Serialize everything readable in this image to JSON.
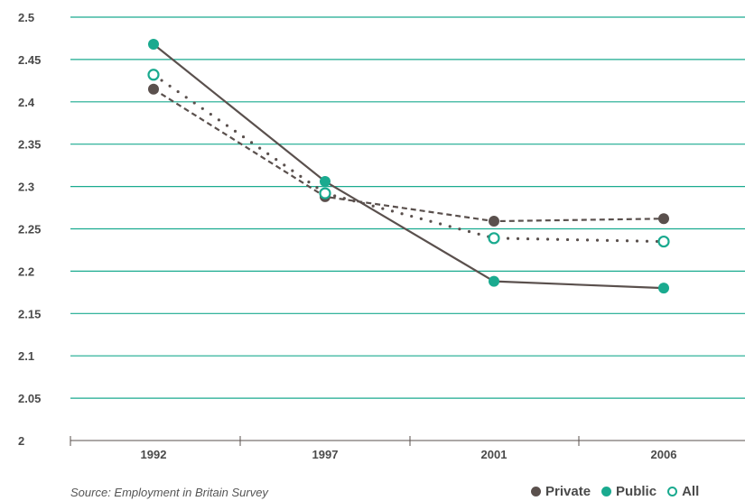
{
  "chart_data": {
    "type": "line",
    "categories": [
      "1992",
      "1997",
      "2001",
      "2006"
    ],
    "ylim": [
      2,
      2.5
    ],
    "yticks": [
      "2.5",
      "2.45",
      "2.4",
      "2.35",
      "2.3",
      "2.25",
      "2.2",
      "2.15",
      "2.1",
      "2.05",
      "2"
    ],
    "grid": true,
    "legend_position": "bottom-right",
    "series": [
      {
        "name": "Private",
        "values": [
          2.415,
          2.288,
          2.259,
          2.262
        ],
        "color": "#5a504d",
        "line": "dashed",
        "marker": "filled"
      },
      {
        "name": "Public",
        "values": [
          2.468,
          2.306,
          2.188,
          2.18
        ],
        "color": "#1aaa8f",
        "line": "solid",
        "marker": "filled"
      },
      {
        "name": "All",
        "values": [
          2.432,
          2.292,
          2.239,
          2.235
        ],
        "color": "#1aaa8f",
        "line": "dotted",
        "marker": "hollow"
      }
    ],
    "line_color": "#5a504d",
    "grid_color": "#1aaa8f",
    "source": "Source: Employment in Britain Survey"
  }
}
